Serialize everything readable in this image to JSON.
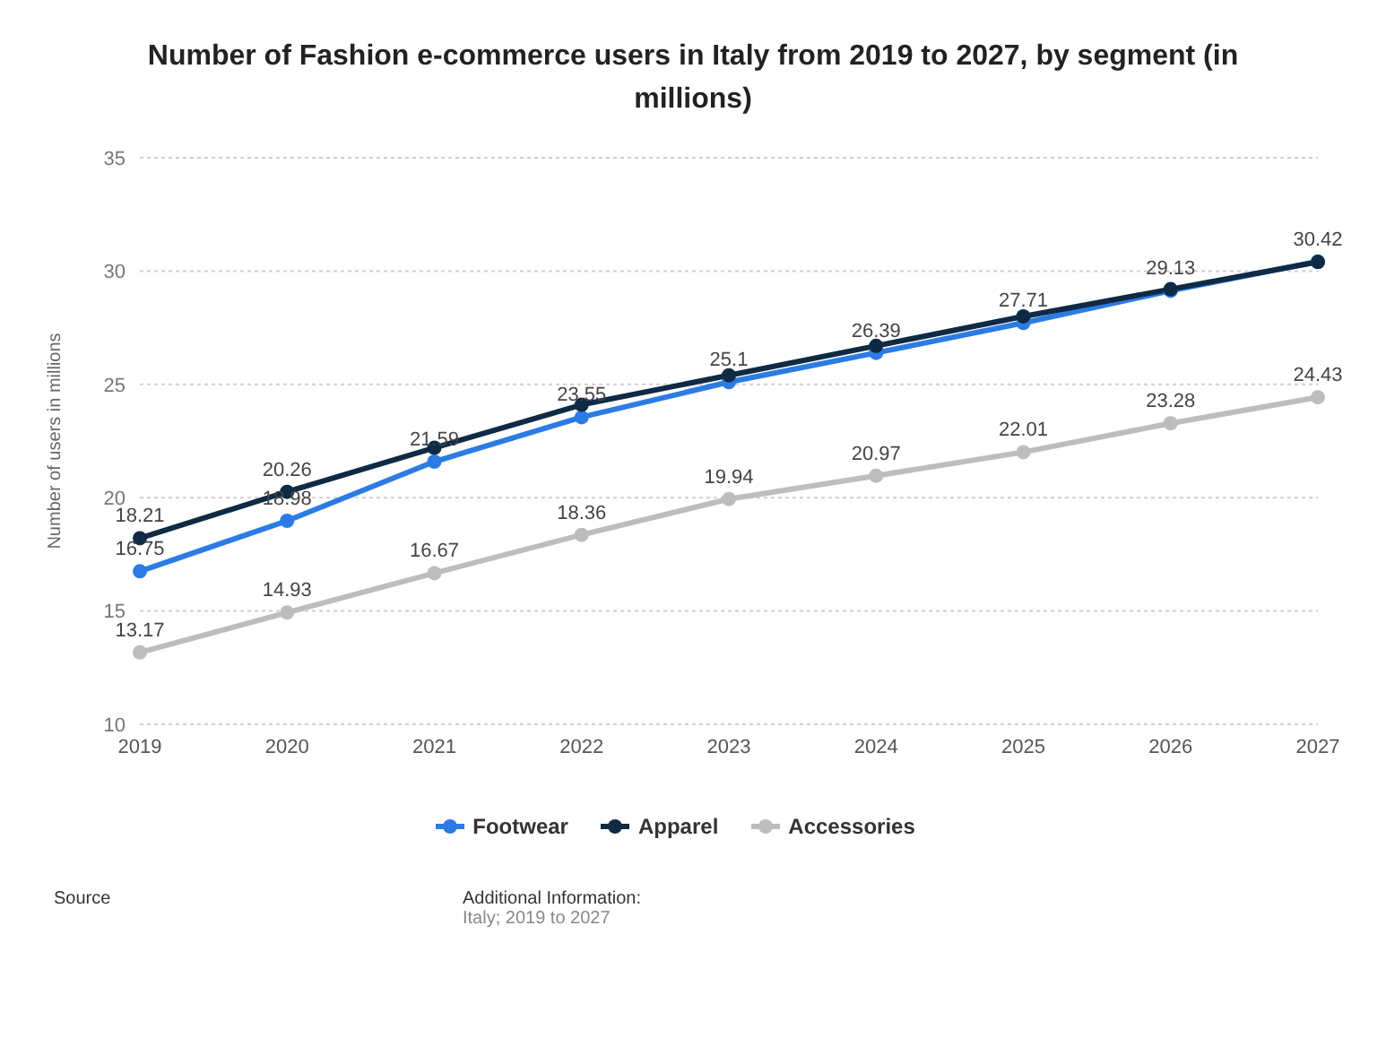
{
  "chart_data": {
    "type": "line",
    "title": "Number of Fashion e-commerce users in Italy from 2019 to 2027, by segment (in millions)",
    "ylabel": "Number of users in millions",
    "categories": [
      "2019",
      "2020",
      "2021",
      "2022",
      "2023",
      "2024",
      "2025",
      "2026",
      "2027"
    ],
    "series": [
      {
        "name": "Footwear",
        "color": "#2c7be5",
        "values": [
          16.75,
          18.98,
          21.59,
          23.55,
          25.1,
          26.39,
          27.71,
          29.13,
          30.42
        ],
        "value_labels": [
          "16.75",
          "18.98",
          "21.59",
          "23.55",
          "25.1",
          "26.39",
          "27.71",
          "29.13",
          "30.42"
        ]
      },
      {
        "name": "Apparel",
        "color": "#0f2a44",
        "values": [
          18.21,
          20.26,
          22.2,
          24.1,
          25.4,
          26.7,
          28.0,
          29.2,
          30.4
        ],
        "value_labels": [
          "18.21",
          "20.26",
          null,
          null,
          null,
          null,
          null,
          null,
          null
        ]
      },
      {
        "name": "Accessories",
        "color": "#bdbdbd",
        "values": [
          13.17,
          14.93,
          16.67,
          18.36,
          19.94,
          20.97,
          22.01,
          23.28,
          24.43
        ],
        "value_labels": [
          "13.17",
          "14.93",
          "16.67",
          "18.36",
          "19.94",
          "20.97",
          "22.01",
          "23.28",
          "24.43"
        ]
      }
    ],
    "ylim": [
      10,
      35
    ],
    "yticks": [
      10,
      15,
      20,
      25,
      30,
      35
    ],
    "grid": "y",
    "legend": "bottom",
    "marker": "circle",
    "line_style": "solid",
    "annotations": [
      "Source",
      "Additional Information:",
      "Italy; 2019 to 2027"
    ]
  }
}
